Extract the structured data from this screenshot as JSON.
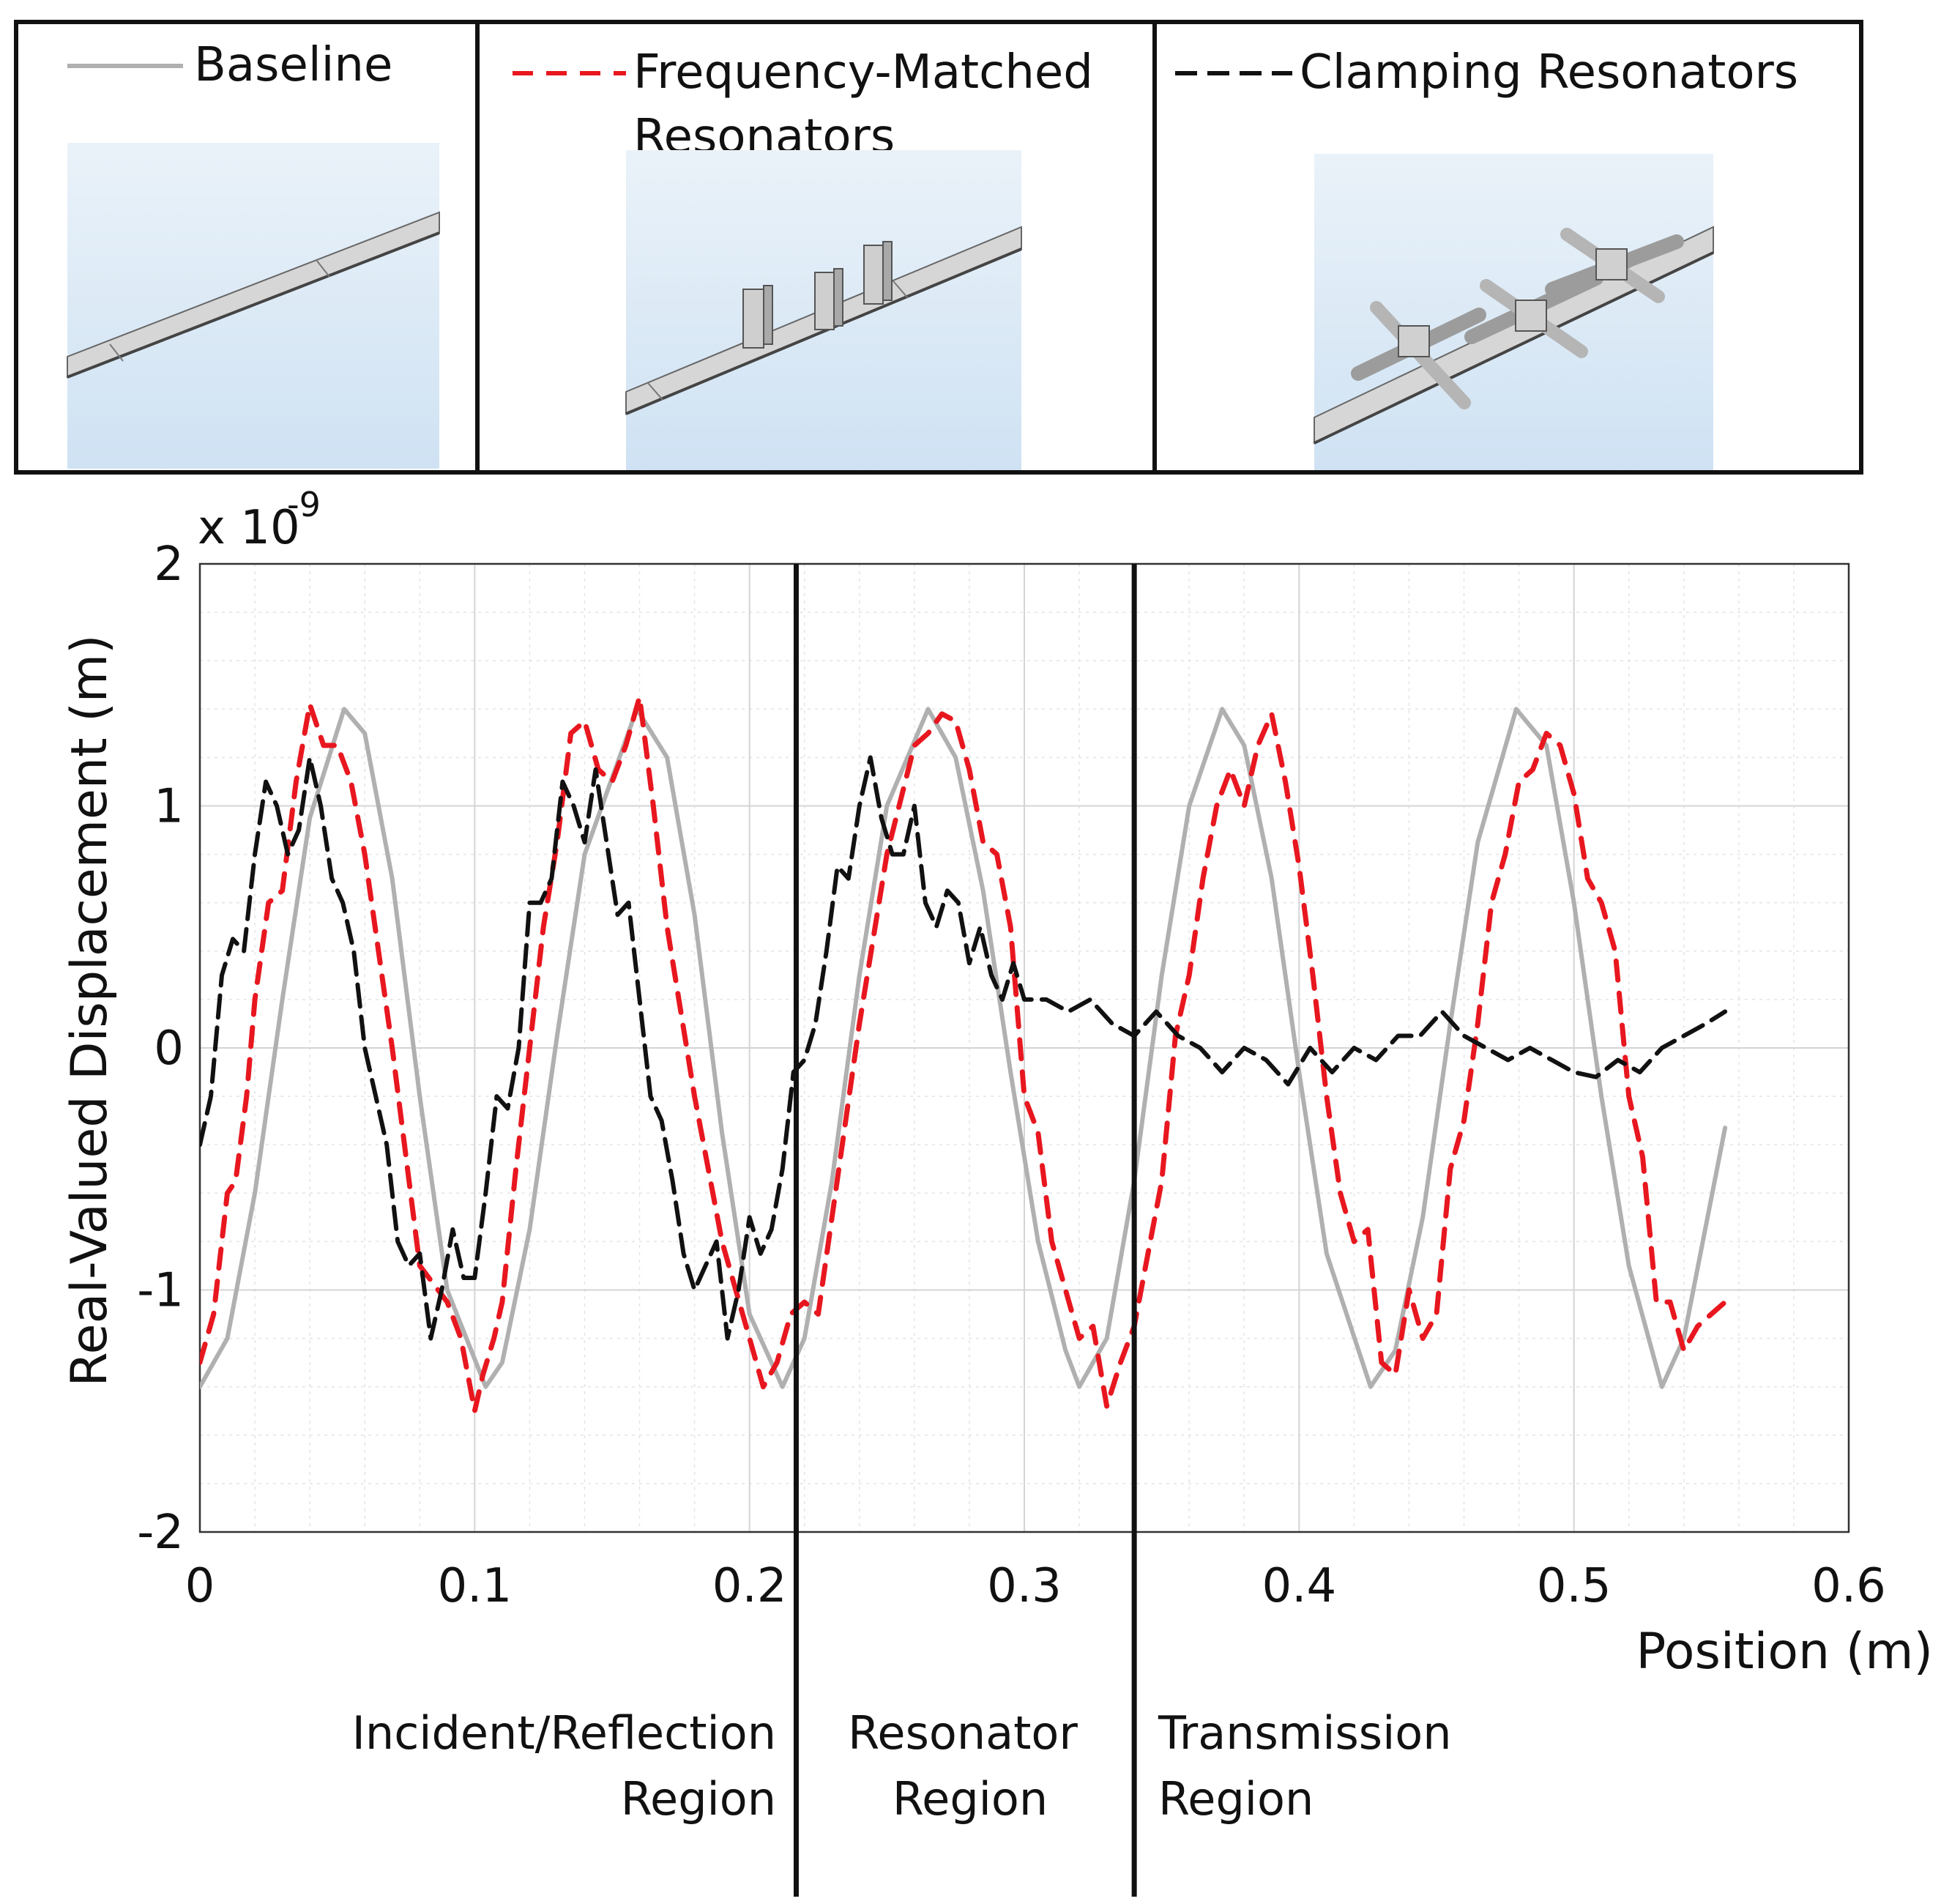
{
  "legend": {
    "baseline": {
      "label": "Baseline",
      "color": "#b0b0b0",
      "style": "solid"
    },
    "freq": {
      "label_line1": "Frequency-Matched",
      "label_line2": "Resonators",
      "color": "#e8171f",
      "style": "dashed"
    },
    "clamp": {
      "label": "Clamping Resonators",
      "color": "#111111",
      "style": "dashed"
    }
  },
  "chart_data": {
    "type": "line",
    "title": "",
    "xlabel": "Position (m)",
    "ylabel": "Real-Valued Displacement (m)",
    "y_multiplier": "x 10",
    "y_exponent": "-9",
    "xlim": [
      0,
      0.6
    ],
    "ylim": [
      -2,
      2
    ],
    "grid": true,
    "minor_grid": true,
    "xticks": [
      0,
      0.1,
      0.2,
      0.3,
      0.4,
      0.5,
      0.6
    ],
    "xtick_labels": [
      "0",
      "0.1",
      "0.2",
      "0.3",
      "0.4",
      "0.5",
      "0.6"
    ],
    "yticks": [
      -2,
      -1,
      0,
      1,
      2
    ],
    "ytick_labels": [
      "-2",
      "-1",
      "0",
      "1",
      "2"
    ],
    "region_boundaries": [
      0.217,
      0.34
    ],
    "regions": [
      {
        "line1": "Incident/Reflection",
        "line2": "Region"
      },
      {
        "line1": "Resonator",
        "line2": "Region"
      },
      {
        "line1": "Transmission",
        "line2": "Region"
      }
    ],
    "series": [
      {
        "name": "Baseline",
        "key": "baseline",
        "x": [
          0,
          0.01,
          0.02,
          0.03,
          0.04,
          0.0525,
          0.06,
          0.07,
          0.08,
          0.09,
          0.104,
          0.11,
          0.12,
          0.13,
          0.14,
          0.159,
          0.17,
          0.18,
          0.19,
          0.2,
          0.212,
          0.22,
          0.23,
          0.24,
          0.25,
          0.265,
          0.275,
          0.285,
          0.295,
          0.305,
          0.315,
          0.32,
          0.33,
          0.34,
          0.35,
          0.36,
          0.372,
          0.38,
          0.39,
          0.4,
          0.41,
          0.426,
          0.435,
          0.445,
          0.455,
          0.465,
          0.479,
          0.49,
          0.5,
          0.51,
          0.52,
          0.532,
          0.54,
          0.555
        ],
        "values": [
          -1.4,
          -1.2,
          -0.6,
          0.2,
          0.95,
          1.4,
          1.3,
          0.7,
          -0.2,
          -1.0,
          -1.4,
          -1.3,
          -0.75,
          0.05,
          0.8,
          1.4,
          1.2,
          0.55,
          -0.35,
          -1.1,
          -1.4,
          -1.2,
          -0.55,
          0.3,
          1.0,
          1.4,
          1.2,
          0.65,
          -0.1,
          -0.8,
          -1.25,
          -1.4,
          -1.2,
          -0.55,
          0.3,
          1.0,
          1.4,
          1.25,
          0.7,
          -0.1,
          -0.85,
          -1.4,
          -1.25,
          -0.7,
          0.1,
          0.85,
          1.4,
          1.25,
          0.6,
          -0.2,
          -0.9,
          -1.4,
          -1.2,
          -0.33
        ]
      },
      {
        "name": "Frequency-Matched Resonators",
        "key": "freq",
        "x": [
          0,
          0.005,
          0.01,
          0.013,
          0.017,
          0.02,
          0.025,
          0.03,
          0.035,
          0.04,
          0.045,
          0.05,
          0.055,
          0.06,
          0.07,
          0.08,
          0.09,
          0.095,
          0.1,
          0.103,
          0.107,
          0.11,
          0.115,
          0.12,
          0.125,
          0.13,
          0.135,
          0.14,
          0.145,
          0.15,
          0.155,
          0.16,
          0.165,
          0.17,
          0.18,
          0.19,
          0.2,
          0.205,
          0.21,
          0.215,
          0.22,
          0.225,
          0.23,
          0.24,
          0.25,
          0.26,
          0.265,
          0.27,
          0.275,
          0.28,
          0.285,
          0.29,
          0.295,
          0.3,
          0.305,
          0.31,
          0.315,
          0.32,
          0.325,
          0.33,
          0.335,
          0.34,
          0.345,
          0.35,
          0.355,
          0.36,
          0.365,
          0.37,
          0.375,
          0.38,
          0.385,
          0.39,
          0.395,
          0.4,
          0.405,
          0.41,
          0.415,
          0.42,
          0.425,
          0.43,
          0.435,
          0.44,
          0.445,
          0.45,
          0.455,
          0.46,
          0.465,
          0.47,
          0.475,
          0.48,
          0.485,
          0.49,
          0.495,
          0.5,
          0.505,
          0.51,
          0.515,
          0.52,
          0.525,
          0.53,
          0.535,
          0.54,
          0.545,
          0.55,
          0.555
        ],
        "values": [
          -1.3,
          -1.1,
          -0.6,
          -0.55,
          -0.2,
          0.2,
          0.6,
          0.65,
          1.1,
          1.42,
          1.25,
          1.25,
          1.1,
          0.8,
          0.0,
          -0.9,
          -1.05,
          -1.2,
          -1.5,
          -1.35,
          -1.2,
          -1.05,
          -0.5,
          0.0,
          0.5,
          0.85,
          1.3,
          1.35,
          1.15,
          1.1,
          1.25,
          1.45,
          1.0,
          0.5,
          -0.2,
          -0.8,
          -1.2,
          -1.4,
          -1.3,
          -1.1,
          -1.05,
          -1.1,
          -0.7,
          0.1,
          0.8,
          1.25,
          1.3,
          1.38,
          1.35,
          1.15,
          0.85,
          0.8,
          0.5,
          -0.2,
          -0.35,
          -0.8,
          -1.0,
          -1.2,
          -1.15,
          -1.48,
          -1.3,
          -1.15,
          -0.85,
          -0.55,
          0.05,
          0.3,
          0.7,
          1.0,
          1.15,
          1.0,
          1.25,
          1.38,
          1.1,
          0.75,
          0.3,
          -0.2,
          -0.6,
          -0.8,
          -0.75,
          -1.3,
          -1.35,
          -1.0,
          -1.2,
          -1.1,
          -0.5,
          -0.3,
          0.1,
          0.6,
          0.8,
          1.1,
          1.15,
          1.3,
          1.25,
          1.05,
          0.7,
          0.6,
          0.4,
          -0.2,
          -0.45,
          -1.05,
          -1.05,
          -1.25,
          -1.15,
          -1.1,
          -1.05
        ]
      },
      {
        "name": "Clamping Resonators",
        "key": "clamp",
        "x": [
          0,
          0.004,
          0.008,
          0.012,
          0.016,
          0.02,
          0.024,
          0.028,
          0.032,
          0.036,
          0.04,
          0.044,
          0.048,
          0.052,
          0.056,
          0.06,
          0.064,
          0.068,
          0.072,
          0.076,
          0.08,
          0.084,
          0.088,
          0.092,
          0.096,
          0.1,
          0.104,
          0.108,
          0.112,
          0.116,
          0.12,
          0.124,
          0.128,
          0.132,
          0.136,
          0.14,
          0.144,
          0.148,
          0.152,
          0.156,
          0.16,
          0.164,
          0.168,
          0.172,
          0.176,
          0.18,
          0.184,
          0.188,
          0.192,
          0.196,
          0.2,
          0.204,
          0.208,
          0.212,
          0.216,
          0.22,
          0.224,
          0.228,
          0.232,
          0.236,
          0.24,
          0.244,
          0.248,
          0.252,
          0.256,
          0.26,
          0.264,
          0.268,
          0.272,
          0.276,
          0.28,
          0.284,
          0.288,
          0.292,
          0.296,
          0.3,
          0.308,
          0.316,
          0.324,
          0.332,
          0.34,
          0.348,
          0.356,
          0.364,
          0.372,
          0.38,
          0.388,
          0.396,
          0.404,
          0.412,
          0.42,
          0.428,
          0.436,
          0.444,
          0.452,
          0.46,
          0.468,
          0.476,
          0.484,
          0.492,
          0.5,
          0.508,
          0.516,
          0.524,
          0.532,
          0.54,
          0.548,
          0.555
        ],
        "values": [
          -0.4,
          -0.2,
          0.3,
          0.45,
          0.4,
          0.8,
          1.1,
          1.0,
          0.8,
          0.9,
          1.2,
          1.0,
          0.7,
          0.6,
          0.4,
          0.0,
          -0.2,
          -0.4,
          -0.8,
          -0.9,
          -0.85,
          -1.2,
          -1.0,
          -0.75,
          -0.95,
          -0.95,
          -0.6,
          -0.2,
          -0.25,
          0.0,
          0.6,
          0.6,
          0.7,
          1.1,
          1.0,
          0.85,
          1.15,
          0.85,
          0.55,
          0.6,
          0.2,
          -0.2,
          -0.3,
          -0.55,
          -0.85,
          -1.0,
          -0.9,
          -0.8,
          -1.2,
          -1.0,
          -0.7,
          -0.85,
          -0.75,
          -0.5,
          -0.1,
          -0.05,
          0.1,
          0.4,
          0.75,
          0.7,
          1.0,
          1.2,
          0.95,
          0.8,
          0.8,
          1.0,
          0.6,
          0.5,
          0.65,
          0.6,
          0.35,
          0.5,
          0.3,
          0.2,
          0.35,
          0.2,
          0.2,
          0.15,
          0.2,
          0.1,
          0.05,
          0.15,
          0.05,
          0.0,
          -0.1,
          0.0,
          -0.05,
          -0.15,
          0.0,
          -0.1,
          0.0,
          -0.05,
          0.05,
          0.05,
          0.15,
          0.05,
          0.0,
          -0.05,
          0.0,
          -0.05,
          -0.1,
          -0.12,
          -0.05,
          -0.1,
          0.0,
          0.05,
          0.1,
          0.15
        ]
      }
    ]
  }
}
